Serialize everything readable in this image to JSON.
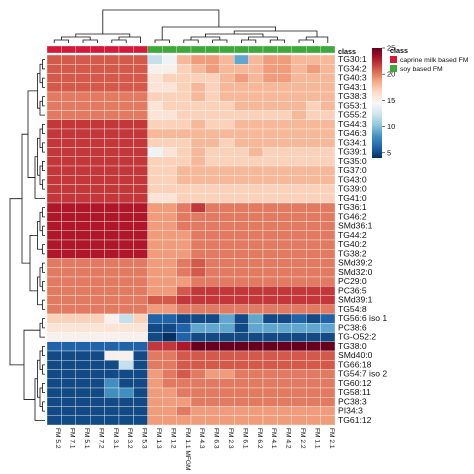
{
  "chart_data": {
    "type": "heatmap",
    "title": "",
    "annotation_title": "class",
    "columns": [
      "FM 5.2",
      "FM 7.1",
      "FM 5.1",
      "FM 7.2",
      "FM 3.1",
      "FM 3.2",
      "FM 5.3",
      "FM 1.3",
      "FM 1.2",
      "FM 1.1 MFGM",
      "FM 4.3",
      "FM 6.3",
      "FM 2.3",
      "FM 6.1",
      "FM 6.2",
      "FM 4.1",
      "FM 4.2",
      "FM 2.2",
      "FM 1.1",
      "FM 2.1"
    ],
    "column_classes": [
      "caprine milk based FM",
      "caprine milk based FM",
      "caprine milk based FM",
      "caprine milk based FM",
      "caprine milk based FM",
      "caprine milk based FM",
      "caprine milk based FM",
      "soy based FM",
      "soy based FM",
      "soy based FM",
      "soy based FM",
      "soy based FM",
      "soy based FM",
      "soy based FM",
      "soy based FM",
      "soy based FM",
      "soy based FM",
      "soy based FM",
      "soy based FM",
      "soy based FM"
    ],
    "rows": [
      "TG30:1",
      "TG34:2",
      "TG40:3",
      "TG43:1",
      "TG38:3",
      "TG53:1",
      "TG55:2",
      "TG44:3",
      "TG46:3",
      "TG34:1",
      "TG39:1",
      "TG35:0",
      "TG37:0",
      "TG43:0",
      "TG39:0",
      "TG41:0",
      "TG36:1",
      "TG46:2",
      "SMd36:1",
      "TG44:2",
      "TG40:2",
      "TG38:2",
      "SMd39:2",
      "SMd32:0",
      "PC29:0",
      "PC36:5",
      "SMd39:1",
      "TG54:8",
      "TG56:6 iso 1",
      "PC38:6",
      "TG-O52:2",
      "TG38:0",
      "SMd40:0",
      "TG66:18",
      "TG54:7 iso 2",
      "TG60:12",
      "TG58:11",
      "PC38:3",
      "PI34:3",
      "TG61:12"
    ],
    "values": [
      [
        21,
        21,
        21,
        21,
        21,
        21,
        21,
        12,
        14,
        18,
        19,
        19,
        18,
        9,
        18,
        19,
        19,
        18,
        18,
        18
      ],
      [
        21,
        21,
        21,
        21,
        21,
        21,
        21,
        15,
        15,
        17,
        18,
        19,
        18,
        18,
        18,
        19,
        19,
        18,
        19,
        18
      ],
      [
        21,
        21,
        21,
        21,
        21,
        21,
        21,
        16,
        17,
        17,
        17,
        17,
        18,
        19,
        18,
        19,
        19,
        18,
        18,
        18
      ],
      [
        21,
        21,
        21,
        21,
        21,
        21,
        21,
        16,
        16,
        17,
        18,
        17,
        18,
        18,
        18,
        18,
        18,
        18,
        18,
        18
      ],
      [
        20,
        20,
        20,
        20,
        20,
        20,
        20,
        17,
        17,
        17,
        18,
        17,
        18,
        18,
        18,
        18,
        18,
        18,
        18,
        18
      ],
      [
        20,
        20,
        20,
        20,
        20,
        20,
        20,
        16,
        17,
        17,
        17,
        17,
        17,
        18,
        18,
        18,
        18,
        18,
        17,
        18
      ],
      [
        20,
        20,
        20,
        20,
        20,
        20,
        20,
        16,
        16,
        17,
        17,
        17,
        17,
        17,
        17,
        17,
        17,
        18,
        17,
        17
      ],
      [
        22,
        22,
        22,
        22,
        22,
        22,
        22,
        17,
        17,
        17,
        18,
        17,
        17,
        18,
        18,
        18,
        18,
        18,
        18,
        18
      ],
      [
        22,
        22,
        22,
        22,
        22,
        22,
        22,
        18,
        18,
        18,
        18,
        18,
        18,
        18,
        18,
        18,
        18,
        18,
        18,
        18
      ],
      [
        22,
        22,
        22,
        22,
        22,
        22,
        22,
        17,
        17,
        17,
        18,
        18,
        17,
        18,
        18,
        18,
        18,
        18,
        18,
        18
      ],
      [
        22,
        22,
        22,
        22,
        22,
        22,
        22,
        14,
        16,
        17,
        18,
        17,
        17,
        17,
        18,
        17,
        17,
        17,
        17,
        17
      ],
      [
        22,
        22,
        22,
        22,
        22,
        22,
        22,
        17,
        17,
        17,
        18,
        17,
        17,
        17,
        17,
        17,
        17,
        17,
        17,
        17
      ],
      [
        22,
        22,
        22,
        22,
        22,
        22,
        22,
        17,
        17,
        18,
        18,
        18,
        18,
        18,
        18,
        18,
        18,
        18,
        18,
        18
      ],
      [
        22,
        22,
        22,
        22,
        22,
        22,
        22,
        17,
        17,
        18,
        18,
        18,
        18,
        18,
        18,
        18,
        18,
        18,
        18,
        18
      ],
      [
        22,
        22,
        22,
        22,
        22,
        22,
        22,
        17,
        17,
        17,
        17,
        17,
        17,
        17,
        17,
        17,
        17,
        17,
        17,
        17
      ],
      [
        22,
        22,
        22,
        22,
        22,
        22,
        22,
        16,
        16,
        17,
        17,
        17,
        17,
        17,
        17,
        17,
        17,
        17,
        17,
        17
      ],
      [
        23,
        23,
        23,
        23,
        23,
        23,
        23,
        19,
        19,
        20,
        22,
        20,
        20,
        20,
        20,
        20,
        20,
        20,
        20,
        20
      ],
      [
        23,
        23,
        23,
        23,
        23,
        23,
        23,
        19,
        19,
        20,
        20,
        20,
        20,
        20,
        20,
        20,
        20,
        20,
        20,
        20
      ],
      [
        23,
        23,
        23,
        23,
        23,
        23,
        23,
        19,
        19,
        20,
        20,
        20,
        20,
        20,
        20,
        20,
        20,
        20,
        20,
        20
      ],
      [
        23,
        23,
        23,
        23,
        23,
        23,
        23,
        19,
        19,
        19,
        20,
        20,
        20,
        20,
        20,
        20,
        20,
        20,
        20,
        20
      ],
      [
        23,
        23,
        23,
        23,
        23,
        23,
        23,
        19,
        19,
        19,
        20,
        20,
        20,
        20,
        20,
        20,
        20,
        20,
        20,
        20
      ],
      [
        23,
        23,
        23,
        23,
        23,
        23,
        23,
        19,
        19,
        19,
        20,
        20,
        20,
        20,
        20,
        20,
        20,
        20,
        20,
        20
      ],
      [
        20,
        20,
        20,
        20,
        20,
        20,
        20,
        19,
        19,
        20,
        21,
        20,
        20,
        20,
        20,
        20,
        20,
        20,
        20,
        20
      ],
      [
        20,
        20,
        20,
        20,
        20,
        20,
        20,
        19,
        19,
        20,
        21,
        20,
        20,
        20,
        20,
        20,
        20,
        20,
        20,
        20
      ],
      [
        20,
        20,
        20,
        20,
        20,
        20,
        20,
        19,
        19,
        19,
        20,
        20,
        20,
        20,
        20,
        20,
        20,
        20,
        20,
        20
      ],
      [
        20,
        20,
        20,
        20,
        20,
        20,
        20,
        19,
        19,
        21,
        22,
        22,
        22,
        22,
        22,
        22,
        22,
        22,
        22,
        22
      ],
      [
        20,
        20,
        20,
        20,
        20,
        20,
        20,
        21,
        21,
        22,
        22,
        22,
        22,
        22,
        22,
        22,
        22,
        22,
        22,
        22
      ],
      [
        20,
        20,
        20,
        20,
        20,
        20,
        20,
        19,
        19,
        20,
        20,
        20,
        20,
        20,
        20,
        20,
        20,
        20,
        20,
        20
      ],
      [
        17,
        17,
        17,
        17,
        15,
        12,
        17,
        6,
        6,
        5,
        5,
        5,
        9,
        5,
        9,
        5,
        5,
        6,
        5,
        6
      ],
      [
        16,
        16,
        16,
        16,
        16,
        16,
        16,
        5,
        5,
        6,
        9,
        9,
        9,
        5,
        9,
        9,
        9,
        9,
        9,
        9
      ],
      [
        15,
        15,
        15,
        15,
        15,
        15,
        15,
        5,
        4,
        6,
        5,
        5,
        5,
        5,
        5,
        5,
        5,
        5,
        5,
        5
      ],
      [
        6,
        6,
        6,
        6,
        6,
        6,
        6,
        22,
        22,
        23,
        25,
        25,
        25,
        25,
        25,
        25,
        25,
        25,
        25,
        25
      ],
      [
        5,
        5,
        5,
        5,
        15,
        15,
        5,
        20,
        20,
        21,
        21,
        21,
        21,
        21,
        21,
        21,
        21,
        21,
        21,
        21
      ],
      [
        5,
        5,
        5,
        5,
        5,
        12,
        5,
        20,
        20,
        21,
        21,
        21,
        21,
        21,
        21,
        21,
        21,
        21,
        21,
        21
      ],
      [
        5,
        5,
        5,
        5,
        5,
        5,
        5,
        19,
        20,
        21,
        20,
        19,
        19,
        20,
        20,
        20,
        20,
        20,
        20,
        20
      ],
      [
        5,
        5,
        5,
        5,
        8,
        5,
        5,
        19,
        20,
        20,
        20,
        20,
        20,
        20,
        20,
        20,
        20,
        20,
        20,
        20
      ],
      [
        5,
        5,
        5,
        5,
        8,
        8,
        5,
        19,
        19,
        20,
        20,
        20,
        20,
        20,
        20,
        20,
        20,
        20,
        20,
        20
      ],
      [
        5,
        5,
        5,
        5,
        5,
        5,
        5,
        19,
        19,
        19,
        20,
        20,
        20,
        20,
        20,
        20,
        20,
        20,
        20,
        20
      ],
      [
        5,
        5,
        5,
        5,
        5,
        5,
        5,
        19,
        19,
        20,
        19,
        19,
        19,
        19,
        19,
        19,
        19,
        19,
        19,
        19
      ],
      [
        5,
        5,
        5,
        5,
        5,
        5,
        5,
        19,
        19,
        19,
        19,
        19,
        19,
        19,
        19,
        19,
        19,
        19,
        19,
        19
      ]
    ],
    "color_scale": {
      "min": 4,
      "max": 25,
      "ticks": [
        5,
        10,
        15,
        20,
        25
      ],
      "colors": [
        "#053061",
        "#2166ac",
        "#4393c3",
        "#92c5de",
        "#d1e5f0",
        "#f7f7f7",
        "#fddbc7",
        "#f4a582",
        "#d6604d",
        "#b2182b",
        "#67001f"
      ]
    },
    "legend": {
      "title": "class",
      "entries": [
        {
          "label": "caprine milk based FM",
          "color": "#d4193a"
        },
        {
          "label": "soy based FM",
          "color": "#3fa83b"
        }
      ],
      "placement": "right"
    }
  }
}
